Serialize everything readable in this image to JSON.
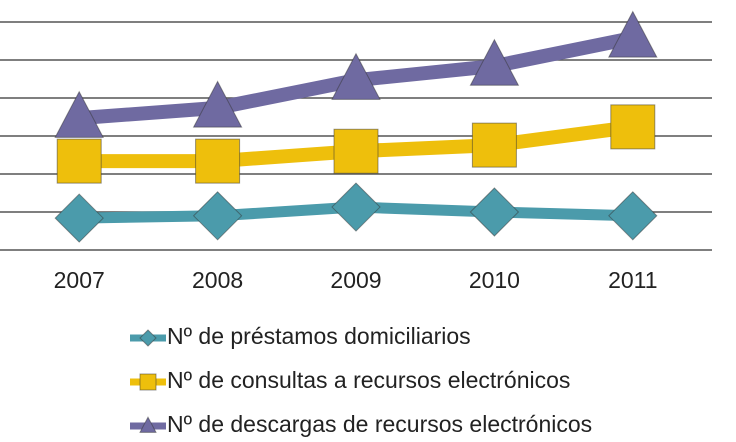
{
  "chart_data": {
    "type": "line",
    "categories": [
      "2007",
      "2008",
      "2009",
      "2010",
      "2011"
    ],
    "series": [
      {
        "name": "Nº de préstamos domiciliarios",
        "color": "#4b9bab",
        "marker": "diamond",
        "values": [
          0.84,
          0.9,
          1.13,
          1.0,
          0.9
        ]
      },
      {
        "name": "Nº de consultas a recursos electrónicos",
        "color": "#eebf0c",
        "marker": "square",
        "values": [
          2.34,
          2.34,
          2.6,
          2.76,
          3.24
        ]
      },
      {
        "name": "Nº de descargas de recursos electrónicos",
        "color": "#6f6aa1",
        "marker": "triangle",
        "values": [
          3.47,
          3.74,
          4.47,
          4.84,
          5.58
        ]
      }
    ],
    "ylim": [
      0,
      6
    ],
    "yticks": [
      0,
      1,
      2,
      3,
      4,
      5,
      6
    ],
    "grid": true,
    "legend": "bottom"
  }
}
